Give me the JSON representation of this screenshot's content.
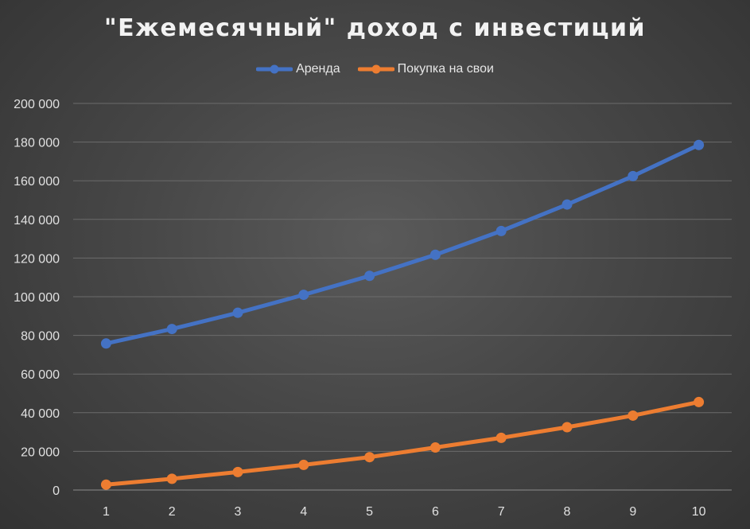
{
  "chart_data": {
    "type": "line",
    "title": "\"Ежемесячный\" доход с инвестиций",
    "xlabel": "",
    "ylabel": "",
    "categories": [
      "1",
      "2",
      "3",
      "4",
      "5",
      "6",
      "7",
      "8",
      "9",
      "10"
    ],
    "ylim": [
      0,
      200000
    ],
    "yticks": [
      0,
      20000,
      40000,
      60000,
      80000,
      100000,
      120000,
      140000,
      160000,
      180000,
      200000
    ],
    "ytick_labels": [
      "0",
      "20 000",
      "40 000",
      "60 000",
      "80 000",
      "100 000",
      "120 000",
      "140 000",
      "160 000",
      "180 000",
      "200 000"
    ],
    "grid": true,
    "legend_position": "top",
    "series": [
      {
        "name": "Аренда",
        "color": "#4472c4",
        "values": [
          75800,
          83300,
          91700,
          101000,
          110800,
          121700,
          134000,
          147700,
          162400,
          178500
        ]
      },
      {
        "name": "Покупка на свои",
        "color": "#ed7d31",
        "values": [
          2800,
          5800,
          9300,
          13000,
          17000,
          22000,
          27000,
          32500,
          38500,
          45500
        ]
      }
    ]
  }
}
